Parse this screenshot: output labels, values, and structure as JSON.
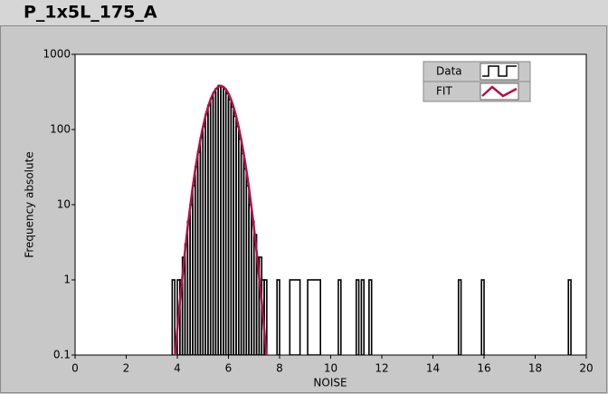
{
  "chart_data": {
    "type": "histogram",
    "title": "P_1x5L_175_A",
    "x_label": "NOISE",
    "y_label": "Frequency absolute",
    "xlim": [
      0,
      20
    ],
    "xticks": [
      0,
      2,
      4,
      6,
      8,
      10,
      12,
      14,
      16,
      18,
      20
    ],
    "ylim": [
      0.1,
      1000
    ],
    "yticks": [
      0.1,
      1,
      10,
      100,
      1000
    ],
    "yscale": "log",
    "legend": "upper right",
    "series": [
      {
        "name": "Data",
        "color": "#000000",
        "type": "histogram",
        "bins": [
          3.8,
          3.9,
          4.0,
          4.1,
          4.2,
          4.3,
          4.4,
          4.5,
          4.6,
          4.7,
          4.8,
          4.9,
          5.0,
          5.1,
          5.2,
          5.3,
          5.4,
          5.5,
          5.6,
          5.7,
          5.8,
          5.9,
          6.0,
          6.1,
          6.2,
          6.3,
          6.4,
          6.5,
          6.6,
          6.7,
          6.8,
          6.9,
          7.0,
          7.1,
          7.2,
          7.3,
          7.4,
          7.5,
          7.9,
          8.0,
          8.4,
          8.8,
          9.1,
          9.6,
          10.3,
          10.4,
          11.0,
          11.1,
          11.2,
          11.3,
          11.5,
          11.6,
          15.0,
          15.1,
          15.9,
          16.0,
          19.3,
          19.4
        ],
        "values": [
          1,
          0,
          1,
          1,
          2,
          3,
          6,
          10,
          18,
          32,
          50,
          78,
          110,
          160,
          210,
          260,
          310,
          350,
          385,
          370,
          345,
          300,
          250,
          200,
          150,
          110,
          75,
          48,
          30,
          18,
          10,
          6,
          4,
          2,
          2,
          1,
          1,
          0,
          1,
          0,
          1,
          0,
          1,
          0,
          1,
          0,
          1,
          0,
          1,
          0,
          1,
          0,
          1,
          0,
          1,
          0,
          1
        ]
      },
      {
        "name": "FIT",
        "color": "#b01048",
        "type": "line",
        "x": [
          3.9,
          4.0,
          4.1,
          4.2,
          4.3,
          4.4,
          4.5,
          4.6,
          4.7,
          4.8,
          4.9,
          5.0,
          5.1,
          5.2,
          5.3,
          5.4,
          5.5,
          5.6,
          5.7,
          5.8,
          5.9,
          6.0,
          6.1,
          6.2,
          6.3,
          6.4,
          6.5,
          6.6,
          6.7,
          6.8,
          6.9,
          7.0,
          7.1,
          7.2,
          7.3,
          7.4,
          7.5
        ],
        "values": [
          0.09,
          0.22,
          0.52,
          1.1,
          2.4,
          4.9,
          9.2,
          17,
          29,
          47,
          73,
          107,
          150,
          199,
          251,
          301,
          343,
          370,
          380,
          370,
          343,
          301,
          251,
          199,
          150,
          107,
          73,
          47,
          29,
          17,
          9.2,
          4.9,
          2.4,
          1.1,
          0.52,
          0.22,
          0.09
        ]
      }
    ]
  }
}
